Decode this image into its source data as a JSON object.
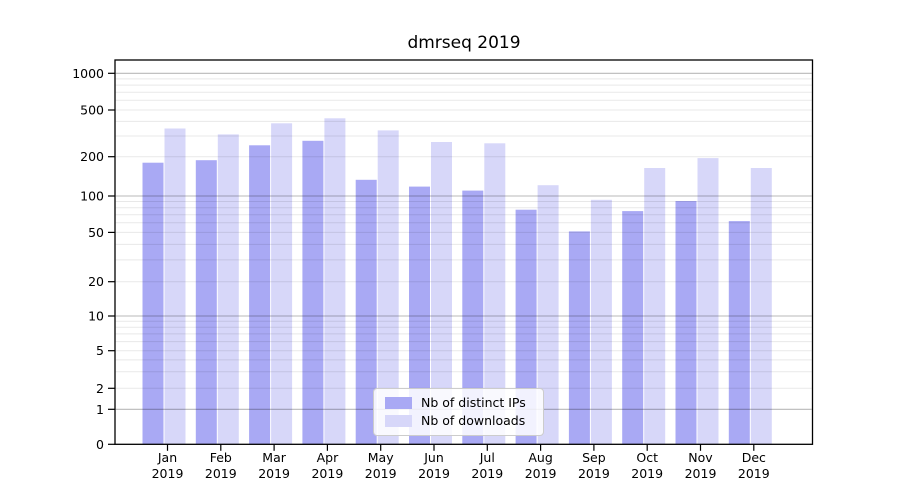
{
  "title": "dmrseq 2019",
  "legend": {
    "items": [
      {
        "label": "Nb of distinct IPs"
      },
      {
        "label": "Nb of downloads"
      }
    ]
  },
  "chart_data": {
    "type": "bar",
    "title": "dmrseq 2019",
    "categories": [
      "Jan",
      "Feb",
      "Mar",
      "Apr",
      "May",
      "Jun",
      "Jul",
      "Aug",
      "Sep",
      "Oct",
      "Nov",
      "Dec"
    ],
    "category_year": "2019",
    "series": [
      {
        "name": "Nb of distinct IPs",
        "color": "#a9a9f4",
        "values": [
          180,
          188,
          250,
          273,
          133,
          118,
          110,
          77,
          51,
          75,
          91,
          62
        ]
      },
      {
        "name": "Nb of downloads",
        "color": "#d7d7f9",
        "values": [
          348,
          310,
          385,
          425,
          335,
          267,
          260,
          121,
          93,
          164,
          195,
          164
        ]
      }
    ],
    "yaxis": {
      "scale": "symlog",
      "ticks": [
        0,
        1,
        2,
        5,
        10,
        20,
        50,
        100,
        200,
        500,
        1000
      ],
      "top": 1000
    },
    "xlabel": "",
    "ylabel": "",
    "grid": {
      "minor_color": "rgba(0,0,0,0.09)",
      "major_color": "rgba(0,0,0,0.28)",
      "major_at": [
        1,
        10,
        100,
        1000
      ]
    },
    "legend_position": "lower-center"
  }
}
